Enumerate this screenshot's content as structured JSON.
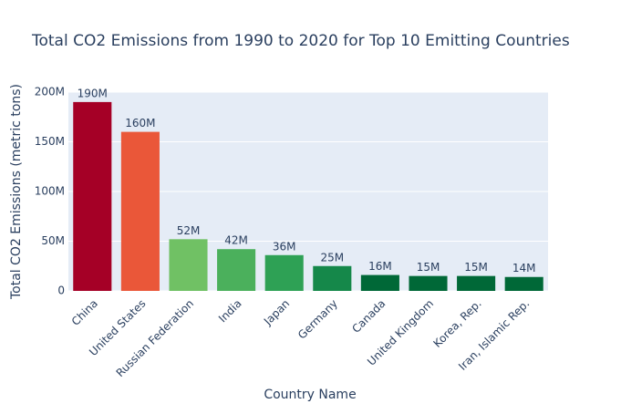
{
  "chart_data": {
    "type": "bar",
    "title": "Total CO2 Emissions from 1990 to 2020 for Top 10 Emitting Countries",
    "x_label": "Country Name",
    "y_label": "Total CO2 Emissions (metric tons)",
    "categories": [
      "China",
      "United States",
      "Russian Federation",
      "India",
      "Japan",
      "Germany",
      "Canada",
      "United Kingdom",
      "Korea, Rep.",
      "Iran, Islamic Rep."
    ],
    "values": [
      190000000,
      160000000,
      52000000,
      42000000,
      36000000,
      25000000,
      16000000,
      15000000,
      15000000,
      14000000
    ],
    "value_labels": [
      "190M",
      "160M",
      "52M",
      "42M",
      "36M",
      "25M",
      "16M",
      "15M",
      "15M",
      "14M"
    ],
    "colors": [
      "#a50026",
      "#ea5739",
      "#70c164",
      "#4bb05c",
      "#2ea155",
      "#15884a",
      "#006837",
      "#006837",
      "#006837",
      "#006837"
    ],
    "ylim": [
      0,
      200000000
    ],
    "yticks": [
      {
        "value": 0,
        "label": "0"
      },
      {
        "value": 50000000,
        "label": "50M"
      },
      {
        "value": 100000000,
        "label": "100M"
      },
      {
        "value": 150000000,
        "label": "150M"
      },
      {
        "value": 200000000,
        "label": "200M"
      }
    ],
    "grid": true
  }
}
